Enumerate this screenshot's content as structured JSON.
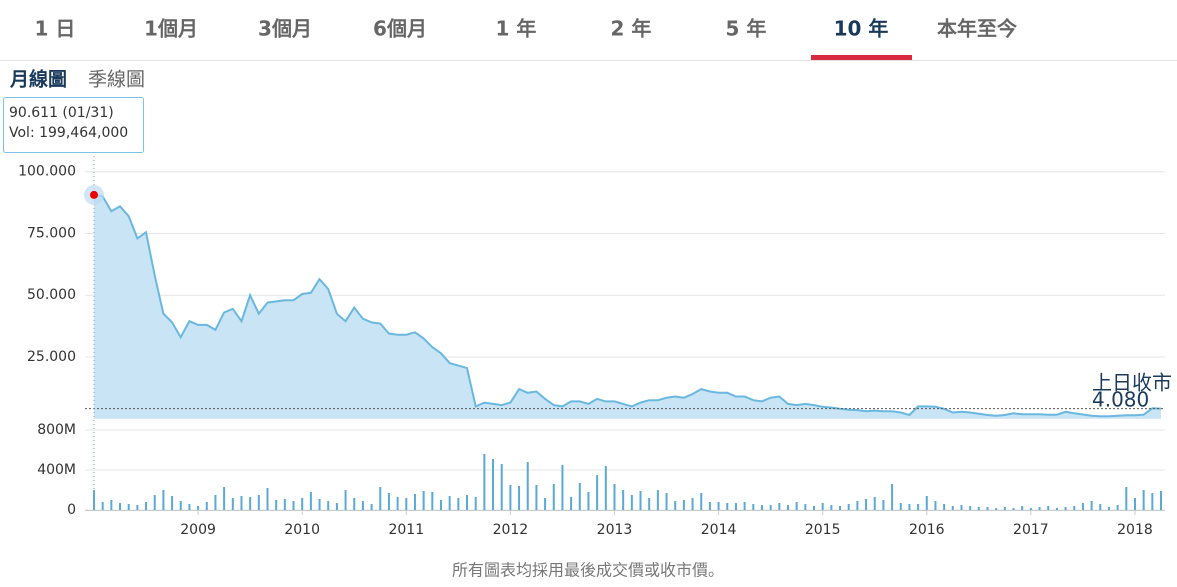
{
  "tabs": [
    "1 日",
    "1個月",
    "3個月",
    "6個月",
    "1 年",
    "2 年",
    "5 年",
    "10 年",
    "本年至今"
  ],
  "views": [
    "月線圖",
    "季線圖"
  ],
  "chart_data": {
    "type": "stock",
    "categories": [
      null,
      null,
      null,
      null,
      null,
      null,
      null,
      null,
      null,
      null,
      null,
      null,
      "2009",
      null,
      null,
      null,
      null,
      null,
      null,
      null,
      null,
      null,
      null,
      null,
      "2010",
      null,
      null,
      null,
      null,
      null,
      null,
      null,
      null,
      null,
      null,
      null,
      "2011",
      null,
      null,
      null,
      null,
      null,
      null,
      null,
      null,
      null,
      null,
      null,
      "2012",
      null,
      null,
      null,
      null,
      null,
      null,
      null,
      null,
      null,
      null,
      null,
      "2013",
      null,
      null,
      null,
      null,
      null,
      null,
      null,
      null,
      null,
      null,
      null,
      "2014",
      null,
      null,
      null,
      null,
      null,
      null,
      null,
      null,
      null,
      null,
      null,
      "2015",
      null,
      null,
      null,
      null,
      null,
      null,
      null,
      null,
      null,
      null,
      null,
      "2016",
      null,
      null,
      null,
      null,
      null,
      null,
      null,
      null,
      null,
      null,
      null,
      "2017",
      null,
      null,
      null,
      null,
      null,
      null,
      null,
      null,
      null,
      null,
      null,
      "2018",
      null,
      null,
      null
    ],
    "series": [
      {
        "type": "area",
        "color": "#6ab8e0",
        "values": [
          90.611,
          90,
          84,
          86,
          82,
          73,
          75.5,
          58,
          42.5,
          39,
          33,
          39.5,
          38,
          38,
          36,
          43,
          44.5,
          39.5,
          50,
          42.5,
          47,
          47.5,
          48,
          48,
          50.5,
          51,
          56.5,
          52.5,
          42.5,
          39.5,
          45,
          40.5,
          39,
          38.5,
          34.5,
          34,
          34,
          35,
          32.5,
          29,
          26.5,
          22.5,
          21.5,
          20.5,
          5,
          6.5,
          6,
          5.5,
          6.5,
          12,
          10.5,
          11,
          8,
          5.5,
          5,
          7,
          7,
          6,
          8,
          7,
          7,
          6,
          5,
          6.5,
          7.5,
          7.5,
          8.5,
          9,
          8.5,
          10,
          12,
          11,
          10.5,
          10.5,
          9,
          9,
          7.5,
          7,
          8.5,
          9,
          6,
          5.5,
          6,
          5.5,
          4.8,
          4.5,
          4,
          3.6,
          3.5,
          3,
          3.3,
          3,
          3,
          2.5,
          1.5,
          5,
          5,
          4.8,
          4,
          2.5,
          2.8,
          2.5,
          2,
          1.5,
          1.2,
          1.5,
          2.2,
          1.8,
          1.8,
          1.8,
          1.6,
          1.6,
          2.8,
          2.2,
          1.7,
          1.2,
          1,
          1,
          1.2,
          1.4,
          1.4,
          1.6,
          4.2,
          4.08
        ]
      },
      {
        "type": "bar",
        "axis": "y2",
        "color": "#5aa9d6",
        "values": [
          199.464,
          80,
          100,
          70,
          60,
          50,
          80,
          150,
          200,
          140,
          90,
          60,
          40,
          80,
          150,
          230,
          120,
          140,
          130,
          150,
          220,
          100,
          110,
          90,
          120,
          180,
          110,
          90,
          70,
          200,
          120,
          90,
          60,
          230,
          170,
          130,
          120,
          160,
          190,
          180,
          100,
          140,
          120,
          150,
          130,
          560,
          510,
          460,
          250,
          240,
          480,
          250,
          120,
          260,
          450,
          130,
          270,
          180,
          350,
          440,
          260,
          200,
          150,
          190,
          120,
          200,
          170,
          90,
          100,
          120,
          170,
          80,
          80,
          70,
          70,
          80,
          60,
          50,
          50,
          70,
          50,
          80,
          60,
          40,
          70,
          50,
          40,
          60,
          90,
          110,
          130,
          100,
          260,
          70,
          60,
          60,
          140,
          90,
          60,
          40,
          50,
          40,
          30,
          30,
          20,
          30,
          20,
          40,
          20,
          30,
          40,
          20,
          30,
          40,
          70,
          90,
          60,
          30,
          50,
          230,
          120,
          200,
          170,
          190
        ]
      }
    ],
    "ylim": [
      0,
      125
    ],
    "yticks": [
      {
        "value": 25,
        "label": "25.000"
      },
      {
        "value": 50,
        "label": "50.000"
      },
      {
        "value": 75,
        "label": "75.000"
      },
      {
        "value": 100,
        "label": "100.000"
      }
    ],
    "y2lim": [
      0,
      800
    ],
    "y2ticks": [
      0,
      {
        "value": 400,
        "label": "400M"
      },
      {
        "value": 800,
        "label": "800M"
      }
    ],
    "grid": true,
    "tooltip": [
      "90.611 (01/31)",
      "Vol: 199,464,000"
    ],
    "last_close": {
      "label": "上日收市",
      "value": 4.08,
      "value_label": "4.080"
    }
  },
  "footer": "所有圖表均採用最後成交價或收市價。"
}
